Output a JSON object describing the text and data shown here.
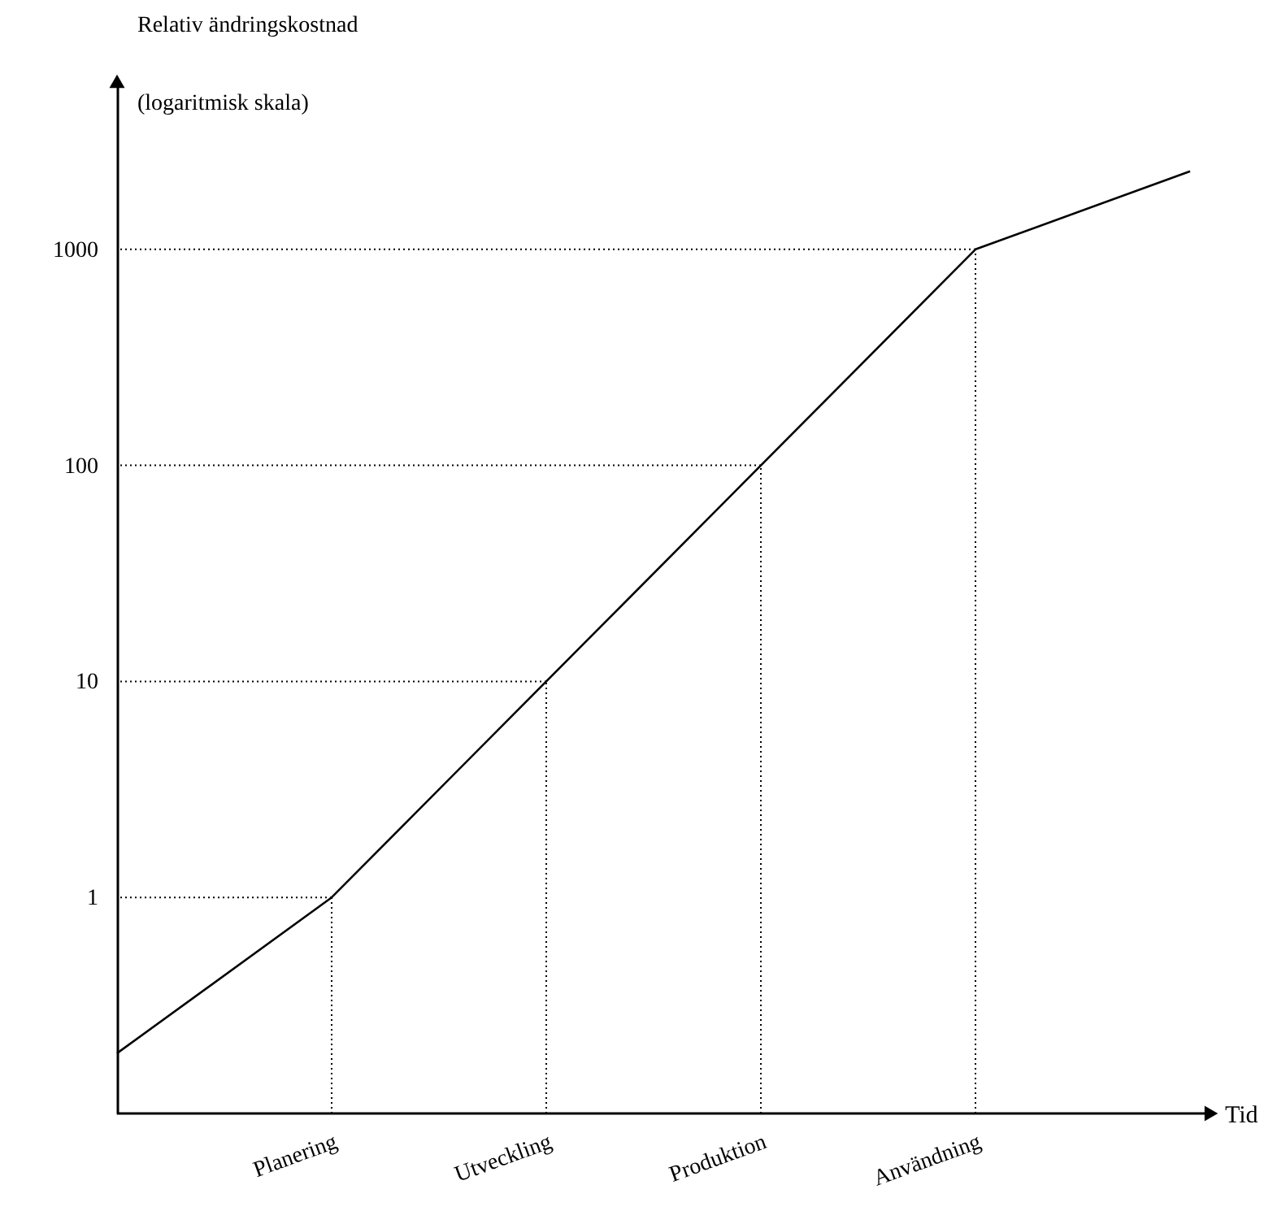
{
  "chart_data": {
    "type": "line",
    "xlabel": "Tid",
    "ylabel": "Relativ ändringskostnad\n(logaritmisk skala)",
    "categories": [
      null,
      "Planering",
      "Utveckling",
      "Produktion",
      "Användning",
      null
    ],
    "series": [
      {
        "color": "#000000",
        "values": [
          0.19,
          1,
          10,
          100,
          1000,
          2300
        ]
      }
    ],
    "ylim": [
      0.1,
      6000
    ],
    "log": "y",
    "yticks": [
      1,
      10,
      100,
      1000
    ],
    "ref_lines": [
      {
        "axis": "x",
        "value": "Planering",
        "line_style": "dotted"
      },
      {
        "axis": "x",
        "value": "Utveckling",
        "line_style": "dotted"
      },
      {
        "axis": "x",
        "value": "Produktion",
        "line_style": "dotted"
      },
      {
        "axis": "x",
        "value": "Användning",
        "line_style": "dotted"
      },
      {
        "axis": "y",
        "value": 1,
        "line_style": "dotted"
      },
      {
        "axis": "y",
        "value": 10,
        "line_style": "dotted"
      },
      {
        "axis": "y",
        "value": 100,
        "line_style": "dotted"
      },
      {
        "axis": "y",
        "value": 1000,
        "line_style": "dotted"
      }
    ],
    "marker": "none",
    "line_style": "solid"
  }
}
